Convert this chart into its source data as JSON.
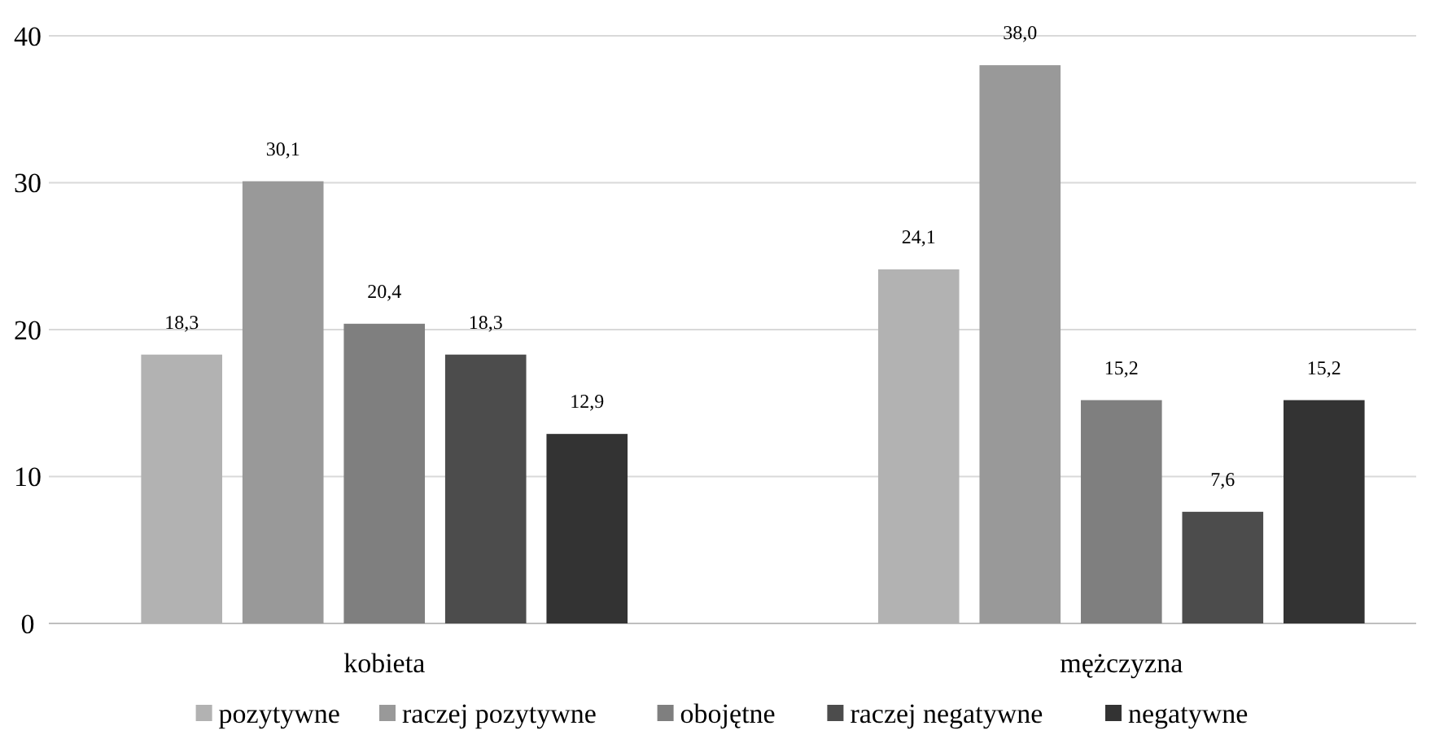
{
  "chart_data": {
    "type": "bar",
    "categories": [
      "kobieta",
      "mężczyzna"
    ],
    "series": [
      {
        "name": "pozytywne",
        "color": "#b2b2b2",
        "values": [
          18.3,
          24.1
        ],
        "value_labels": [
          "18,3",
          "24,1"
        ]
      },
      {
        "name": "raczej pozytywne",
        "color": "#999999",
        "values": [
          30.1,
          38.0
        ],
        "value_labels": [
          "30,1",
          "38,0"
        ]
      },
      {
        "name": "obojętne",
        "color": "#7f7f7f",
        "values": [
          20.4,
          15.2
        ],
        "value_labels": [
          "20,4",
          "15,2"
        ]
      },
      {
        "name": "raczej negatywne",
        "color": "#4c4c4c",
        "values": [
          18.3,
          7.6
        ],
        "value_labels": [
          "18,3",
          "7,6"
        ]
      },
      {
        "name": "negatywne",
        "color": "#333333",
        "values": [
          12.9,
          15.2
        ],
        "value_labels": [
          "12,9",
          "15,2"
        ]
      }
    ],
    "ylim": [
      0,
      40
    ],
    "yticks": [
      0,
      10,
      20,
      30,
      40
    ],
    "grid": "y",
    "legend": "bottom"
  }
}
